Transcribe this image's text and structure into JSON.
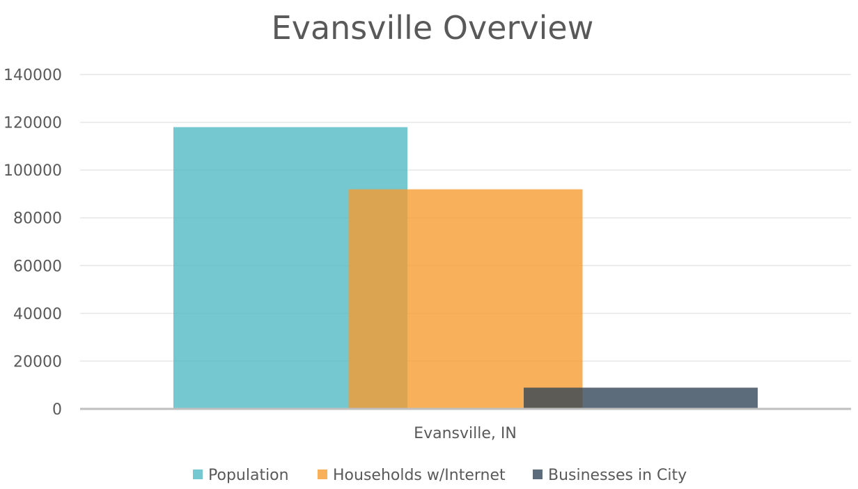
{
  "chart_data": {
    "type": "bar",
    "title": "Evansville Overview",
    "categories": [
      "Evansville, IN"
    ],
    "series": [
      {
        "name": "Population",
        "values": [
          117979
        ],
        "color": "#4FB8C3"
      },
      {
        "name": "Households w/Internet",
        "values": [
          91952
        ],
        "color": "#F79A2C"
      },
      {
        "name": "Businesses in City",
        "values": [
          8900
        ],
        "color": "#2F4254"
      }
    ],
    "ylim": [
      0,
      140000
    ],
    "yticks": [
      0,
      20000,
      40000,
      60000,
      80000,
      100000,
      120000,
      140000
    ],
    "xlabel": "",
    "ylabel": "",
    "grid": true,
    "legend": "bottom",
    "bar_overlap": true,
    "bar_opacity": 0.78
  }
}
